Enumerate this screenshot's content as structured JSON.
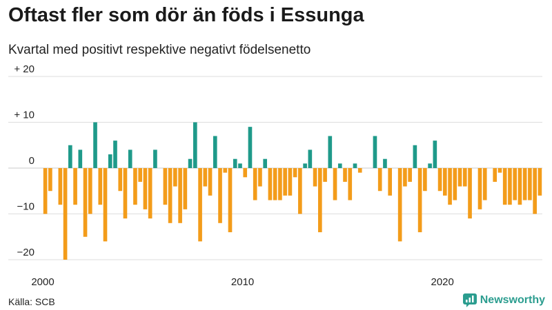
{
  "header": {
    "title": "Oftast fler som dör än föds i Essunga",
    "subtitle": "Kvartal med positivt respektive negativt födelsenetto"
  },
  "footer": {
    "source": "Källa: SCB",
    "brand": "Newsworthy"
  },
  "colors": {
    "positive": "#1f9a8a",
    "negative": "#f39c1a",
    "grid": "#dddddd",
    "brand": "#2b9d8f"
  },
  "chart_data": {
    "type": "bar",
    "xlabel": "",
    "ylabel": "",
    "ylim": [
      -20,
      20
    ],
    "yticks": [
      20,
      10,
      0,
      -10,
      -20
    ],
    "ytick_labels": [
      "+ 20",
      "+ 10",
      "0",
      "−10",
      "−20"
    ],
    "xticks": [
      "2000",
      "2010",
      "2020"
    ],
    "grid": true,
    "frequency": "quarterly",
    "categories": [
      "2000K1",
      "2000K2",
      "2000K3",
      "2000K4",
      "2001K1",
      "2001K2",
      "2001K3",
      "2001K4",
      "2002K1",
      "2002K2",
      "2002K3",
      "2002K4",
      "2003K1",
      "2003K2",
      "2003K3",
      "2003K4",
      "2004K1",
      "2004K2",
      "2004K3",
      "2004K4",
      "2005K1",
      "2005K2",
      "2005K3",
      "2005K4",
      "2006K1",
      "2006K2",
      "2006K3",
      "2006K4",
      "2007K1",
      "2007K2",
      "2007K3",
      "2007K4",
      "2008K1",
      "2008K2",
      "2008K3",
      "2008K4",
      "2009K1",
      "2009K2",
      "2009K3",
      "2009K4",
      "2010K1",
      "2010K2",
      "2010K3",
      "2010K4",
      "2011K1",
      "2011K2",
      "2011K3",
      "2011K4",
      "2012K1",
      "2012K2",
      "2012K3",
      "2012K4",
      "2013K1",
      "2013K2",
      "2013K3",
      "2013K4",
      "2014K1",
      "2014K2",
      "2014K3",
      "2014K4",
      "2015K1",
      "2015K2",
      "2015K3",
      "2015K4",
      "2016K1",
      "2016K2",
      "2016K3",
      "2016K4",
      "2017K1",
      "2017K2",
      "2017K3",
      "2017K4",
      "2018K1",
      "2018K2",
      "2018K3",
      "2018K4",
      "2019K1",
      "2019K2",
      "2019K3",
      "2019K4",
      "2020K1",
      "2020K2",
      "2020K3",
      "2020K4",
      "2021K1",
      "2021K2",
      "2021K3",
      "2021K4",
      "2022K1",
      "2022K2",
      "2022K3",
      "2022K4",
      "2023K1",
      "2023K2",
      "2023K3",
      "2023K4",
      "2024K1",
      "2024K2",
      "2024K3",
      "2024K4"
    ],
    "values": [
      -10,
      -5,
      0,
      -8,
      -20,
      5,
      -8,
      4,
      -15,
      -10,
      10,
      -8,
      -16,
      3,
      6,
      -5,
      -11,
      4,
      -8,
      -3,
      -9,
      -11,
      4,
      0,
      -8,
      -12,
      -4,
      -12,
      -9,
      2,
      10,
      -16,
      -4,
      -6,
      7,
      -12,
      -1,
      -14,
      2,
      1,
      -2,
      9,
      -7,
      -4,
      2,
      -7,
      -7,
      -7,
      -6,
      -6,
      -2,
      -10,
      1,
      4,
      -4,
      -14,
      -3,
      7,
      -7,
      1,
      -3,
      -7,
      1,
      -1,
      0,
      0,
      7,
      -5,
      2,
      -6,
      0,
      -16,
      -4,
      -3,
      5,
      -14,
      -5,
      1,
      6,
      -5,
      -6,
      -8,
      -7,
      -4,
      -4,
      -11,
      0,
      -9,
      -7,
      0,
      -3,
      -1,
      -8,
      -8,
      -7,
      -8,
      -7,
      -7,
      -10,
      -6
    ]
  }
}
